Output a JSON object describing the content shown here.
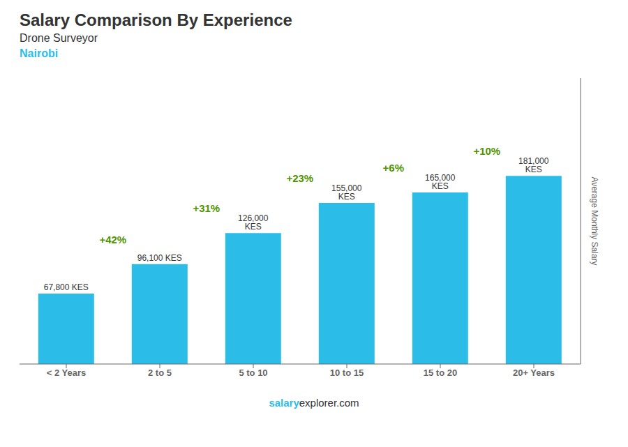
{
  "chart_data": {
    "type": "bar",
    "title": "Salary Comparison By Experience",
    "subtitle": "Drone Surveyor",
    "city": "Nairobi",
    "footer": [
      "salary",
      "explorer.com"
    ],
    "ylabel": "Average Monthly Salary",
    "categories": [
      "< 2 Years",
      "2 to 5",
      "5 to 10",
      "10 to 15",
      "15 to 20",
      "20+ Years"
    ],
    "values": [
      67800,
      96100,
      126000,
      155000,
      165000,
      181000
    ],
    "value_labels": [
      "67,800 KES",
      "96,100 KES",
      "126,000 KES",
      "155,000 KES",
      "165,000 KES",
      "181,000 KES"
    ],
    "annotations": [
      "+42%",
      "+31%",
      "+23%",
      "+6%",
      "+10%"
    ],
    "color": "#2bbde8",
    "ylim": [
      0,
      275120
    ],
    "yticks": [],
    "data_labels": true,
    "tick_labels": "x",
    "grid": false
  }
}
